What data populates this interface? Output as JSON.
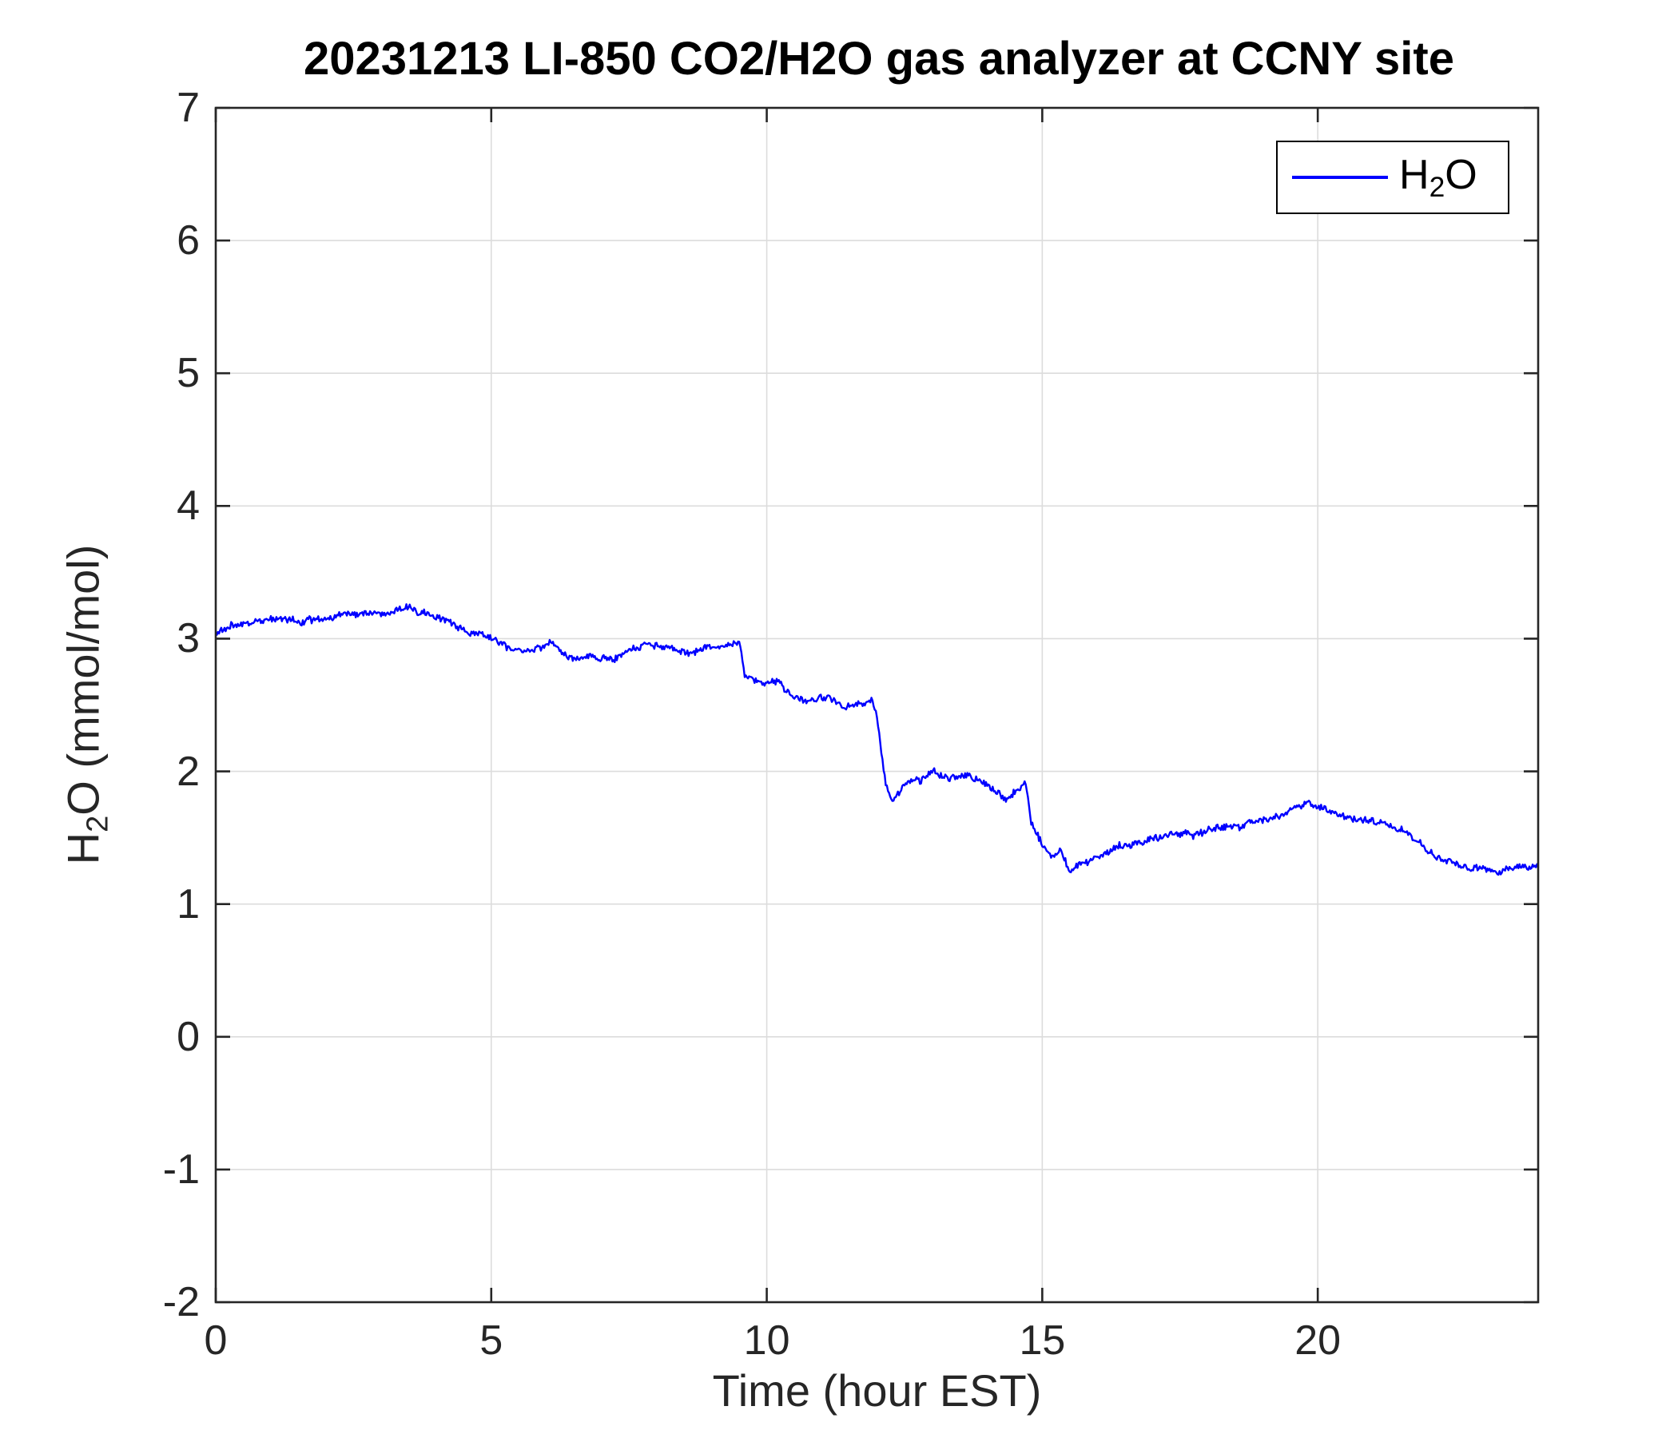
{
  "chart_data": {
    "type": "line",
    "title": "20231213 LI-850 CO2/H2O gas analyzer at CCNY site",
    "xlabel": "Time (hour EST)",
    "ylabel_parts": {
      "pre": "H",
      "sub": "2",
      "post": "O (mmol/mol)"
    },
    "legend": {
      "label_pre": "H",
      "label_sub": "2",
      "label_post": "O"
    },
    "xlim": [
      0,
      24
    ],
    "ylim": [
      -2,
      7
    ],
    "xticks": [
      0,
      5,
      10,
      15,
      20
    ],
    "yticks": [
      -2,
      -1,
      0,
      1,
      2,
      3,
      4,
      5,
      6,
      7
    ],
    "grid": true,
    "grid_color": "#dcdcdc",
    "axis_color": "#262626",
    "line_color": "#0000ff",
    "series": [
      {
        "name": "H2O",
        "anchors_x": [
          0,
          0.5,
          1,
          1.5,
          2,
          2.4,
          3,
          3.5,
          4,
          4.5,
          5,
          5.4,
          5.8,
          6.1,
          6.4,
          6.8,
          7.1,
          7.5,
          7.9,
          8.2,
          8.6,
          9,
          9.3,
          9.5,
          9.6,
          9.9,
          10.2,
          10.5,
          10.8,
          11.1,
          11.4,
          11.7,
          11.9,
          12.0,
          12.15,
          12.3,
          12.5,
          12.8,
          13,
          13.3,
          13.6,
          13.9,
          14.1,
          14.35,
          14.55,
          14.7,
          14.8,
          15.0,
          15.2,
          15.35,
          15.5,
          15.7,
          16,
          16.4,
          16.8,
          17.2,
          17.6,
          18,
          18.4,
          18.8,
          19.2,
          19.6,
          19.85,
          20.1,
          20.4,
          20.8,
          21.2,
          21.5,
          21.8,
          22.1,
          22.4,
          22.8,
          23.2,
          23.5,
          23.8,
          24
        ],
        "anchors_y": [
          3.05,
          3.1,
          3.14,
          3.15,
          3.17,
          3.2,
          3.19,
          3.2,
          3.12,
          3.05,
          2.98,
          2.9,
          2.93,
          3.0,
          2.9,
          2.87,
          2.85,
          2.9,
          2.95,
          2.94,
          2.92,
          2.96,
          3.0,
          3.02,
          2.73,
          2.68,
          2.66,
          2.6,
          2.56,
          2.54,
          2.5,
          2.53,
          2.55,
          2.45,
          1.95,
          1.82,
          1.95,
          1.97,
          2.03,
          1.96,
          2.0,
          1.95,
          1.88,
          1.76,
          1.84,
          1.9,
          1.6,
          1.42,
          1.3,
          1.38,
          1.2,
          1.27,
          1.32,
          1.4,
          1.45,
          1.48,
          1.5,
          1.52,
          1.55,
          1.58,
          1.62,
          1.68,
          1.72,
          1.68,
          1.63,
          1.6,
          1.57,
          1.54,
          1.45,
          1.33,
          1.28,
          1.24,
          1.2,
          1.23,
          1.27,
          1.3
        ],
        "noise_amplitude": 0.025,
        "sample_step_hours": 0.02
      }
    ]
  }
}
